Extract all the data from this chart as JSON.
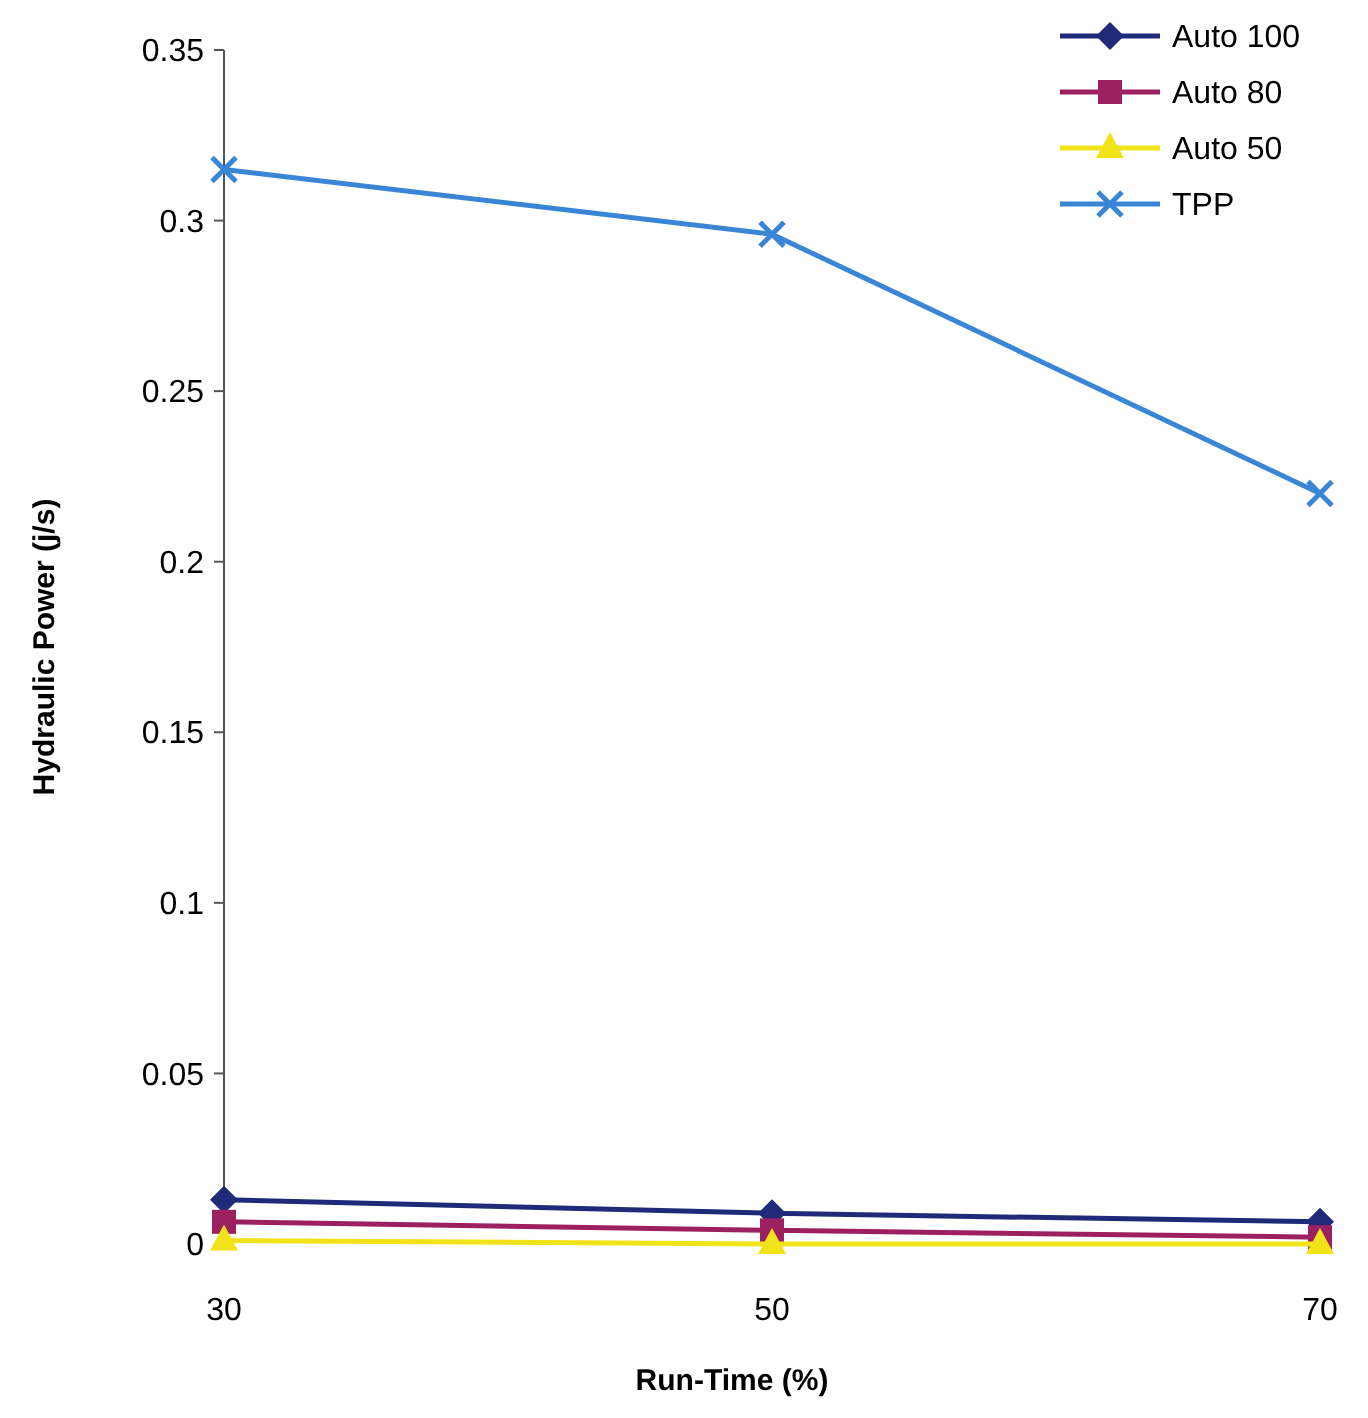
{
  "chart_data": {
    "type": "line",
    "xlabel": "Run-Time (%)",
    "ylabel": "Hydraulic Power (j/s)",
    "x": [
      30,
      50,
      70
    ],
    "xlim": [
      30,
      70
    ],
    "xticks": [
      30,
      50,
      70
    ],
    "ylim": [
      0,
      0.35
    ],
    "yticks": [
      0,
      0.05,
      0.1,
      0.15,
      0.2,
      0.25,
      0.3,
      0.35
    ],
    "grid": false,
    "legend": "top right",
    "series": [
      {
        "name": "Auto 100",
        "color": "#1f2a78",
        "marker": "diamond",
        "values": [
          0.013,
          0.009,
          0.0065
        ]
      },
      {
        "name": "Auto 80",
        "color": "#9c2060",
        "marker": "square",
        "values": [
          0.0065,
          0.004,
          0.002
        ]
      },
      {
        "name": "Auto 50",
        "color": "#f2e21a",
        "marker": "triangle",
        "values": [
          0.001,
          0,
          0
        ]
      },
      {
        "name": "TPP",
        "color": "#3a86d6",
        "marker": "cross",
        "values": [
          0.315,
          0.296,
          0.22
        ]
      }
    ]
  }
}
